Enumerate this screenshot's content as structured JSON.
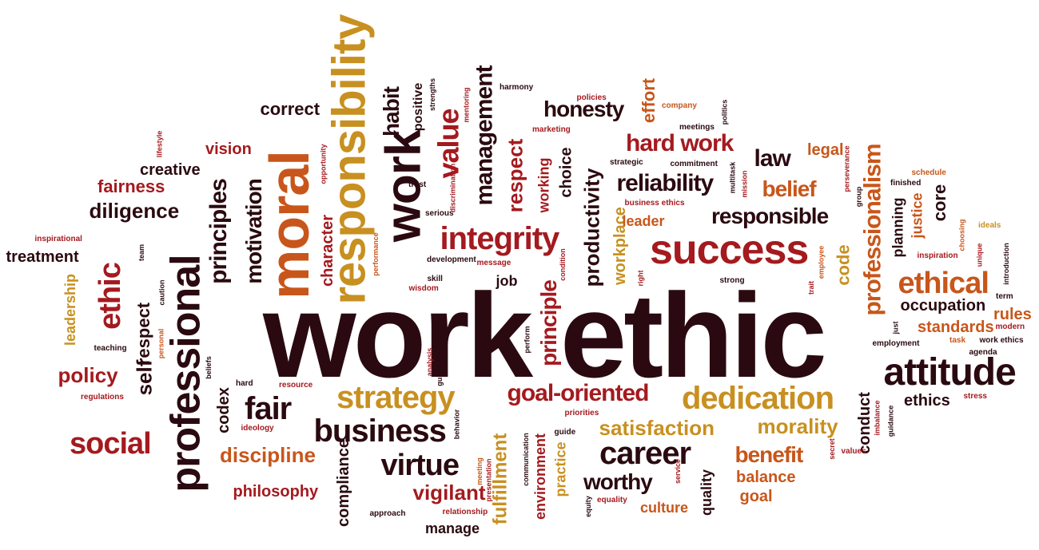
{
  "colors": {
    "dark": "#2a0a10",
    "maroon": "#6b1620",
    "red": "#a41a1f",
    "orange": "#c8561a",
    "gold": "#c89020"
  },
  "words": [
    {
      "text": "work ethic",
      "color": "dark"
    },
    {
      "text": "moral",
      "color": "orange"
    },
    {
      "text": "responsibility",
      "color": "gold"
    },
    {
      "text": "work",
      "color": "dark"
    },
    {
      "text": "professional",
      "color": "dark"
    },
    {
      "text": "success",
      "color": "red"
    },
    {
      "text": "attitude",
      "color": "dark"
    },
    {
      "text": "integrity",
      "color": "red"
    },
    {
      "text": "dedication",
      "color": "gold"
    },
    {
      "text": "ethical",
      "color": "orange"
    },
    {
      "text": "ethic",
      "color": "red"
    },
    {
      "text": "strategy",
      "color": "gold"
    },
    {
      "text": "business",
      "color": "dark"
    },
    {
      "text": "career",
      "color": "dark"
    },
    {
      "text": "virtue",
      "color": "dark"
    },
    {
      "text": "social",
      "color": "red"
    },
    {
      "text": "fair",
      "color": "dark"
    },
    {
      "text": "goal-oriented",
      "color": "red"
    },
    {
      "text": "professionalism",
      "color": "orange"
    },
    {
      "text": "principles",
      "color": "dark"
    },
    {
      "text": "motivation",
      "color": "dark"
    },
    {
      "text": "value",
      "color": "red"
    },
    {
      "text": "management",
      "color": "dark"
    },
    {
      "text": "respect",
      "color": "red"
    },
    {
      "text": "honesty",
      "color": "dark"
    },
    {
      "text": "hard work",
      "color": "red"
    },
    {
      "text": "reliability",
      "color": "dark"
    },
    {
      "text": "responsible",
      "color": "dark"
    },
    {
      "text": "belief",
      "color": "orange"
    },
    {
      "text": "law",
      "color": "dark"
    },
    {
      "text": "legal",
      "color": "orange"
    },
    {
      "text": "diligence",
      "color": "dark"
    },
    {
      "text": "fairness",
      "color": "red"
    },
    {
      "text": "creative",
      "color": "dark"
    },
    {
      "text": "vision",
      "color": "red"
    },
    {
      "text": "correct",
      "color": "dark"
    },
    {
      "text": "habit",
      "color": "dark"
    },
    {
      "text": "positive",
      "color": "dark"
    },
    {
      "text": "productivity",
      "color": "dark"
    },
    {
      "text": "choice",
      "color": "dark"
    },
    {
      "text": "working",
      "color": "red"
    },
    {
      "text": "effort",
      "color": "orange"
    },
    {
      "text": "workplace",
      "color": "gold"
    },
    {
      "text": "principle",
      "color": "red"
    },
    {
      "text": "satisfaction",
      "color": "gold"
    },
    {
      "text": "morality",
      "color": "gold"
    },
    {
      "text": "discipline",
      "color": "orange"
    },
    {
      "text": "benefit",
      "color": "orange"
    },
    {
      "text": "worthy",
      "color": "dark"
    },
    {
      "text": "vigilant",
      "color": "red"
    },
    {
      "text": "fulfillment",
      "color": "gold"
    },
    {
      "text": "policy",
      "color": "red"
    },
    {
      "text": "self",
      "color": "dark"
    },
    {
      "text": "respect",
      "color": "dark"
    },
    {
      "text": "treatment",
      "color": "dark"
    },
    {
      "text": "leadership",
      "color": "gold"
    },
    {
      "text": "philosophy",
      "color": "red"
    },
    {
      "text": "codex",
      "color": "dark"
    },
    {
      "text": "code",
      "color": "gold"
    },
    {
      "text": "core",
      "color": "dark"
    },
    {
      "text": "justice",
      "color": "orange"
    },
    {
      "text": "planning",
      "color": "dark"
    },
    {
      "text": "occupation",
      "color": "dark"
    },
    {
      "text": "standards",
      "color": "orange"
    },
    {
      "text": "rules",
      "color": "orange"
    },
    {
      "text": "ethics",
      "color": "dark"
    },
    {
      "text": "conduct",
      "color": "dark"
    },
    {
      "text": "balance",
      "color": "orange"
    },
    {
      "text": "goal",
      "color": "orange"
    },
    {
      "text": "quality",
      "color": "dark"
    },
    {
      "text": "culture",
      "color": "orange"
    },
    {
      "text": "environment",
      "color": "red"
    },
    {
      "text": "practice",
      "color": "gold"
    },
    {
      "text": "compliance",
      "color": "dark"
    },
    {
      "text": "manage",
      "color": "dark"
    },
    {
      "text": "character",
      "color": "red"
    },
    {
      "text": "job",
      "color": "dark"
    },
    {
      "text": "leader",
      "color": "orange"
    },
    {
      "text": "teaching",
      "color": "dark"
    },
    {
      "text": "harmony",
      "color": "dark"
    },
    {
      "text": "policies",
      "color": "red"
    },
    {
      "text": "company",
      "color": "orange"
    },
    {
      "text": "politics",
      "color": "dark"
    },
    {
      "text": "meetings",
      "color": "dark"
    },
    {
      "text": "marketing",
      "color": "red"
    },
    {
      "text": "commitment",
      "color": "dark"
    },
    {
      "text": "strategic",
      "color": "dark"
    },
    {
      "text": "business ethics",
      "color": "red"
    },
    {
      "text": "multitask",
      "color": "dark"
    },
    {
      "text": "mission",
      "color": "red"
    },
    {
      "text": "perseverance",
      "color": "red"
    },
    {
      "text": "group",
      "color": "dark"
    },
    {
      "text": "schedule",
      "color": "orange"
    },
    {
      "text": "finished",
      "color": "dark"
    },
    {
      "text": "ideals",
      "color": "gold"
    },
    {
      "text": "inspiration",
      "color": "red"
    },
    {
      "text": "choosing",
      "color": "orange"
    },
    {
      "text": "unique",
      "color": "red"
    },
    {
      "text": "introduction",
      "color": "dark"
    },
    {
      "text": "term",
      "color": "dark"
    },
    {
      "text": "modern",
      "color": "red"
    },
    {
      "text": "just",
      "color": "dark"
    },
    {
      "text": "employment",
      "color": "dark"
    },
    {
      "text": "task",
      "color": "orange"
    },
    {
      "text": "work ethics",
      "color": "dark"
    },
    {
      "text": "agenda",
      "color": "dark"
    },
    {
      "text": "stress",
      "color": "red"
    },
    {
      "text": "imbalance",
      "color": "red"
    },
    {
      "text": "guidance",
      "color": "dark"
    },
    {
      "text": "values",
      "color": "red"
    },
    {
      "text": "secret",
      "color": "red"
    },
    {
      "text": "service",
      "color": "red"
    },
    {
      "text": "equality",
      "color": "red"
    },
    {
      "text": "equity",
      "color": "dark"
    },
    {
      "text": "guide",
      "color": "dark"
    },
    {
      "text": "priorities",
      "color": "red"
    },
    {
      "text": "communication",
      "color": "dark"
    },
    {
      "text": "meeting",
      "color": "orange"
    },
    {
      "text": "presentation",
      "color": "red"
    },
    {
      "text": "relationship",
      "color": "red"
    },
    {
      "text": "approach",
      "color": "dark"
    },
    {
      "text": "behavior",
      "color": "dark"
    },
    {
      "text": "ideology",
      "color": "red"
    },
    {
      "text": "hard",
      "color": "dark"
    },
    {
      "text": "resource",
      "color": "red"
    },
    {
      "text": "regulations",
      "color": "red"
    },
    {
      "text": "beliefs",
      "color": "dark"
    },
    {
      "text": "personal",
      "color": "orange"
    },
    {
      "text": "caution",
      "color": "dark"
    },
    {
      "text": "team",
      "color": "dark"
    },
    {
      "text": "inspirational",
      "color": "red"
    },
    {
      "text": "lifestyle",
      "color": "red"
    },
    {
      "text": "opportunity",
      "color": "red"
    },
    {
      "text": "trust",
      "color": "dark"
    },
    {
      "text": "serious",
      "color": "dark"
    },
    {
      "text": "discrimination",
      "color": "red"
    },
    {
      "text": "strengths",
      "color": "dark"
    },
    {
      "text": "mentoring",
      "color": "red"
    },
    {
      "text": "development",
      "color": "dark"
    },
    {
      "text": "message",
      "color": "red"
    },
    {
      "text": "condition",
      "color": "red"
    },
    {
      "text": "performance",
      "color": "orange"
    },
    {
      "text": "skill",
      "color": "dark"
    },
    {
      "text": "wisdom",
      "color": "red"
    },
    {
      "text": "analysis",
      "color": "red"
    },
    {
      "text": "guidelines",
      "color": "dark"
    },
    {
      "text": "perform",
      "color": "dark"
    },
    {
      "text": "right",
      "color": "red"
    },
    {
      "text": "strong",
      "color": "dark"
    },
    {
      "text": "trait",
      "color": "red"
    },
    {
      "text": "employee",
      "color": "orange"
    }
  ]
}
